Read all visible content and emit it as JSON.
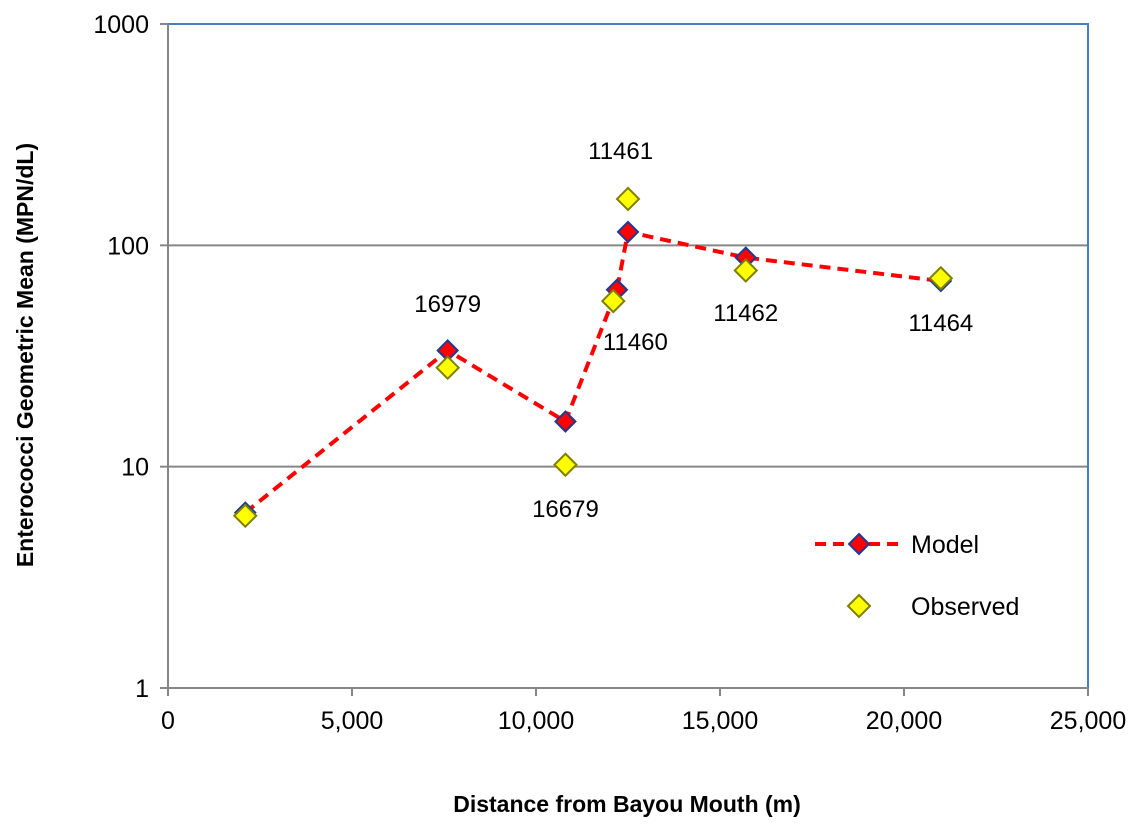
{
  "chart_data": {
    "type": "scatter",
    "xlabel": "Distance from Bayou Mouth (m)",
    "ylabel": "Enterococci Geometric Mean (MPN/dL)",
    "xlim": [
      0,
      25000
    ],
    "ylim": [
      1,
      1000
    ],
    "y_scale": "log",
    "x_ticks": [
      {
        "value": 0,
        "label": "0"
      },
      {
        "value": 5000,
        "label": "5,000"
      },
      {
        "value": 10000,
        "label": "10,000"
      },
      {
        "value": 15000,
        "label": "15,000"
      },
      {
        "value": 20000,
        "label": "20,000"
      },
      {
        "value": 25000,
        "label": "25,000"
      }
    ],
    "y_ticks": [
      {
        "value": 1,
        "label": "1"
      },
      {
        "value": 10,
        "label": "10"
      },
      {
        "value": 100,
        "label": "100"
      },
      {
        "value": 1000,
        "label": "1000"
      }
    ],
    "grid": "horizontal major",
    "legend_position": "bottom-right",
    "series": [
      {
        "name": "Model",
        "style": "dashed-line-diamond",
        "line_color": "#ff0000",
        "marker_fill": "#ff0000",
        "marker_edge": "#1f3a93",
        "points": [
          {
            "x": 2100,
            "y": 6.2
          },
          {
            "x": 7600,
            "y": 33.5
          },
          {
            "x": 10800,
            "y": 16
          },
          {
            "x": 12200,
            "y": 63
          },
          {
            "x": 12500,
            "y": 115
          },
          {
            "x": 15700,
            "y": 88
          },
          {
            "x": 21000,
            "y": 69
          }
        ]
      },
      {
        "name": "Observed",
        "style": "marker-only-diamond",
        "marker_fill": "#ffff00",
        "marker_edge": "#7f7f00",
        "points": [
          {
            "x": 2100,
            "y": 6
          },
          {
            "x": 7600,
            "y": 28
          },
          {
            "x": 10800,
            "y": 10.2
          },
          {
            "x": 12100,
            "y": 56
          },
          {
            "x": 12500,
            "y": 162
          },
          {
            "x": 15700,
            "y": 77
          },
          {
            "x": 21000,
            "y": 71
          }
        ]
      }
    ],
    "annotations": [
      {
        "text": "16979",
        "x": 7600,
        "y": 55
      },
      {
        "text": "16679",
        "x": 10800,
        "y": 6.5
      },
      {
        "text": "11461",
        "x": 12300,
        "y": 270
      },
      {
        "text": "11460",
        "x": 12700,
        "y": 37
      },
      {
        "text": "11462",
        "x": 15700,
        "y": 50
      },
      {
        "text": "11464",
        "x": 21000,
        "y": 45
      }
    ]
  },
  "colors": {
    "plot_border": "#4a7ebb",
    "gridline": "#868686",
    "axis": "#868686"
  }
}
